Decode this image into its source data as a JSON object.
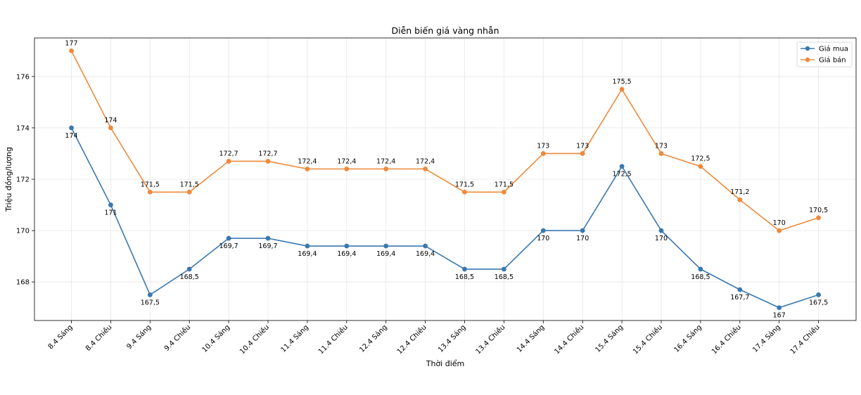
{
  "chart_data": {
    "type": "line",
    "title": "Diễn biến giá vàng nhẫn",
    "xlabel": "Thời điểm",
    "ylabel": "Triệu đồng/lượng",
    "ylim": [
      166.5,
      177.5
    ],
    "yticks": [
      168,
      170,
      172,
      174,
      176
    ],
    "grid": true,
    "legend_position": "top-right",
    "categories": [
      "8.4 Sáng",
      "8.4 Chiều",
      "9.4 Sáng",
      "9.4 Chiều",
      "10.4 Sáng",
      "10.4 Chiều",
      "11.4 Sáng",
      "11.4 Chiều",
      "12.4 Sáng",
      "12.4 Chiều",
      "13.4 Sáng",
      "13.4 Chiều",
      "14.4 Sáng",
      "14.4 Chiều",
      "15.4 Sáng",
      "15.4 Chiều",
      "16.4 Sáng",
      "16.4 Chiều",
      "17.4 Sáng",
      "17.4 Chiều"
    ],
    "series": [
      {
        "name": "Giá mua",
        "color": "#3a78b0",
        "label_position": "below",
        "values": [
          174,
          171,
          167.5,
          168.5,
          169.7,
          169.7,
          169.4,
          169.4,
          169.4,
          169.4,
          168.5,
          168.5,
          170,
          170,
          172.5,
          170,
          168.5,
          167.7,
          167,
          167.5
        ],
        "labels": [
          "174",
          "171",
          "167,5",
          "168,5",
          "169,7",
          "169,7",
          "169,4",
          "169,4",
          "169,4",
          "169,4",
          "168,5",
          "168,5",
          "170",
          "170",
          "172,5",
          "170",
          "168,5",
          "167,7",
          "167",
          "167,5"
        ]
      },
      {
        "name": "Giá bán",
        "color": "#ee8a3a",
        "label_position": "above",
        "values": [
          177,
          174,
          171.5,
          171.5,
          172.7,
          172.7,
          172.4,
          172.4,
          172.4,
          172.4,
          171.5,
          171.5,
          173,
          173,
          175.5,
          173,
          172.5,
          171.2,
          170,
          170.5
        ],
        "labels": [
          "177",
          "174",
          "171,5",
          "171,5",
          "172,7",
          "172,7",
          "172,4",
          "172,4",
          "172,4",
          "172,4",
          "171,5",
          "171,5",
          "173",
          "173",
          "175,5",
          "173",
          "172,5",
          "171,2",
          "170",
          "170,5"
        ]
      }
    ]
  }
}
